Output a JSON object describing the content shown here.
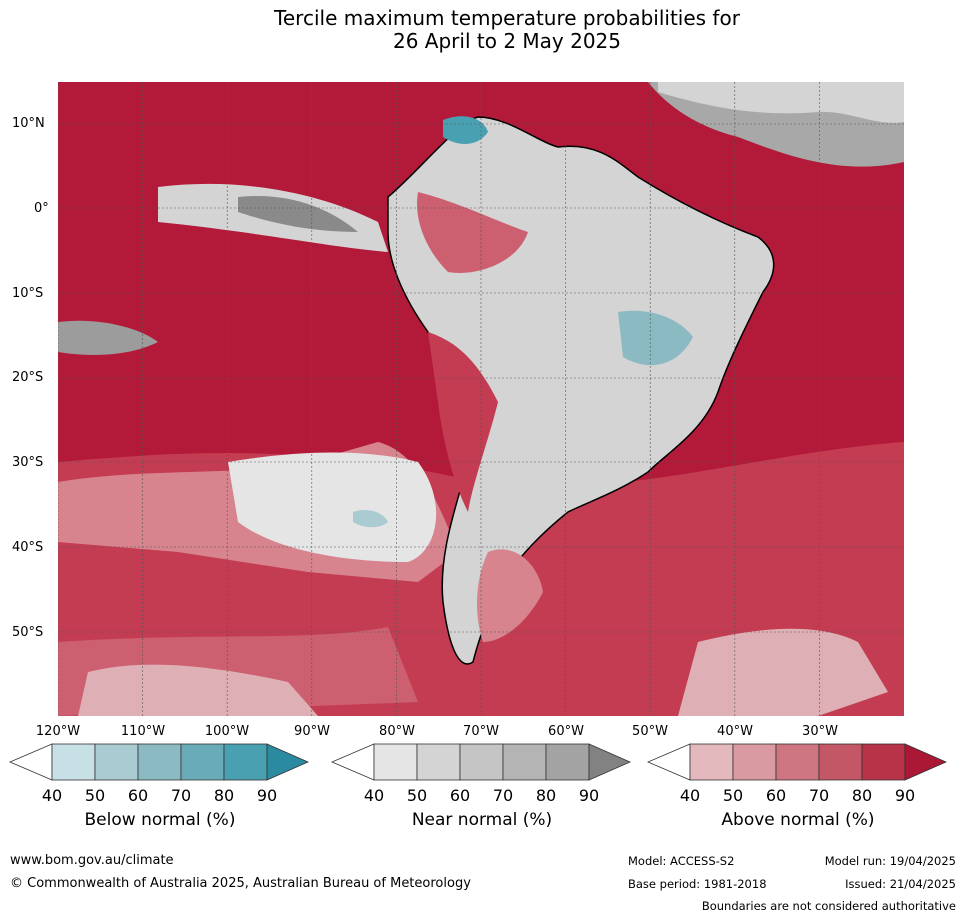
{
  "title": {
    "line1": "Tercile maximum temperature probabilities for",
    "line2": "26 April to 2 May 2025"
  },
  "map": {
    "lat_labels": [
      "10°N",
      "0°",
      "10°S",
      "20°S",
      "30°S",
      "40°S",
      "50°S"
    ],
    "lon_labels": [
      "120°W",
      "110°W",
      "100°W",
      "90°W",
      "80°W",
      "70°W",
      "60°W",
      "50°W",
      "40°W",
      "30°W"
    ],
    "colors": {
      "above90": "#b31a3a",
      "above80": "#c43c52",
      "above70": "#cc6070",
      "above60": "#d7848f",
      "above50": "#deb0b5",
      "near": "#d4d4d4",
      "near_light": "#e5e5e5",
      "near_dark": "#8a8a8a",
      "below": "#8ec0c8",
      "below_dark": "#3a9aac",
      "land_border": "#000000",
      "country_border": "#888888"
    }
  },
  "colorbars": [
    {
      "title": "Below normal (%)",
      "ticks": [
        "40",
        "50",
        "60",
        "70",
        "80",
        "90"
      ],
      "colors": [
        "#ffffff",
        "#c7e0e6",
        "#a9cbd1",
        "#8cbac3",
        "#6aabb8",
        "#48a0b0",
        "#2a8aa0"
      ]
    },
    {
      "title": "Near normal (%)",
      "ticks": [
        "40",
        "50",
        "60",
        "70",
        "80",
        "90"
      ],
      "colors": [
        "#ffffff",
        "#e5e5e5",
        "#d4d4d4",
        "#c5c5c5",
        "#b4b4b4",
        "#a3a3a3",
        "#828282"
      ]
    },
    {
      "title": "Above normal (%)",
      "ticks": [
        "40",
        "50",
        "60",
        "70",
        "80",
        "90"
      ],
      "colors": [
        "#ffffff",
        "#e3b9bd",
        "#d99aa1",
        "#cd7580",
        "#c45766",
        "#b83347",
        "#ab1836"
      ]
    }
  ],
  "footer": {
    "website": "www.bom.gov.au/climate",
    "copyright": "© Commonwealth of Australia 2025, Australian Bureau of Meteorology",
    "model": "Model: ACCESS-S2",
    "base_period": "Base period: 1981-2018",
    "model_run": "Model run: 19/04/2025",
    "issued": "Issued: 21/04/2025",
    "disclaimer": "Boundaries are not considered authoritative"
  }
}
